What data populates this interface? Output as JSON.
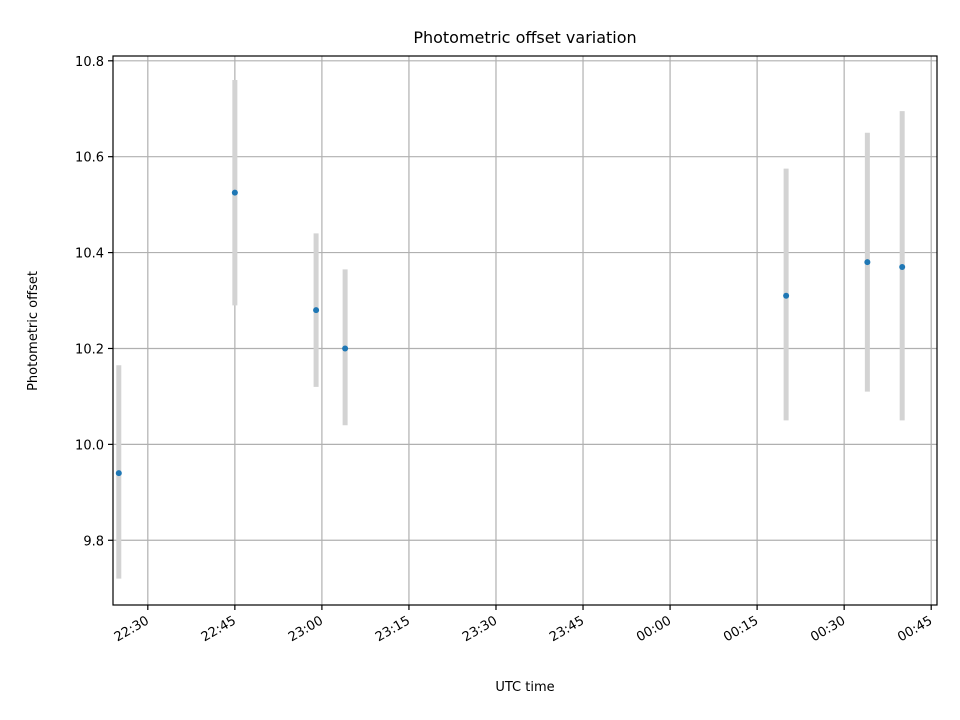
{
  "chart_data": {
    "type": "scatter",
    "title": "Photometric offset variation",
    "xlabel": "UTC time",
    "ylabel": "Photometric offset",
    "x_axis": "time",
    "x_ticks": [
      "22:30",
      "22:45",
      "23:00",
      "23:15",
      "23:30",
      "23:45",
      "00:00",
      "00:15",
      "00:30",
      "00:45"
    ],
    "y_ticks": [
      "9.8",
      "10.0",
      "10.2",
      "10.4",
      "10.6",
      "10.8"
    ],
    "xlim": [
      "22:24",
      "00:46"
    ],
    "ylim": [
      9.665,
      10.81
    ],
    "grid": true,
    "series": [
      {
        "x": [
          "22:25",
          "22:45",
          "22:59",
          "23:04",
          "00:20",
          "00:34",
          "00:40"
        ],
        "y": [
          9.94,
          10.525,
          10.28,
          10.2,
          10.31,
          10.38,
          10.37
        ],
        "yerr_low": [
          9.72,
          10.29,
          10.12,
          10.04,
          10.05,
          10.11,
          10.05
        ],
        "yerr_high": [
          10.165,
          10.76,
          10.44,
          10.365,
          10.575,
          10.65,
          10.695
        ]
      }
    ],
    "colors": {
      "marker": "#1f77b4",
      "errorbar": "#d3d3d3",
      "grid": "#b0b0b0"
    }
  }
}
